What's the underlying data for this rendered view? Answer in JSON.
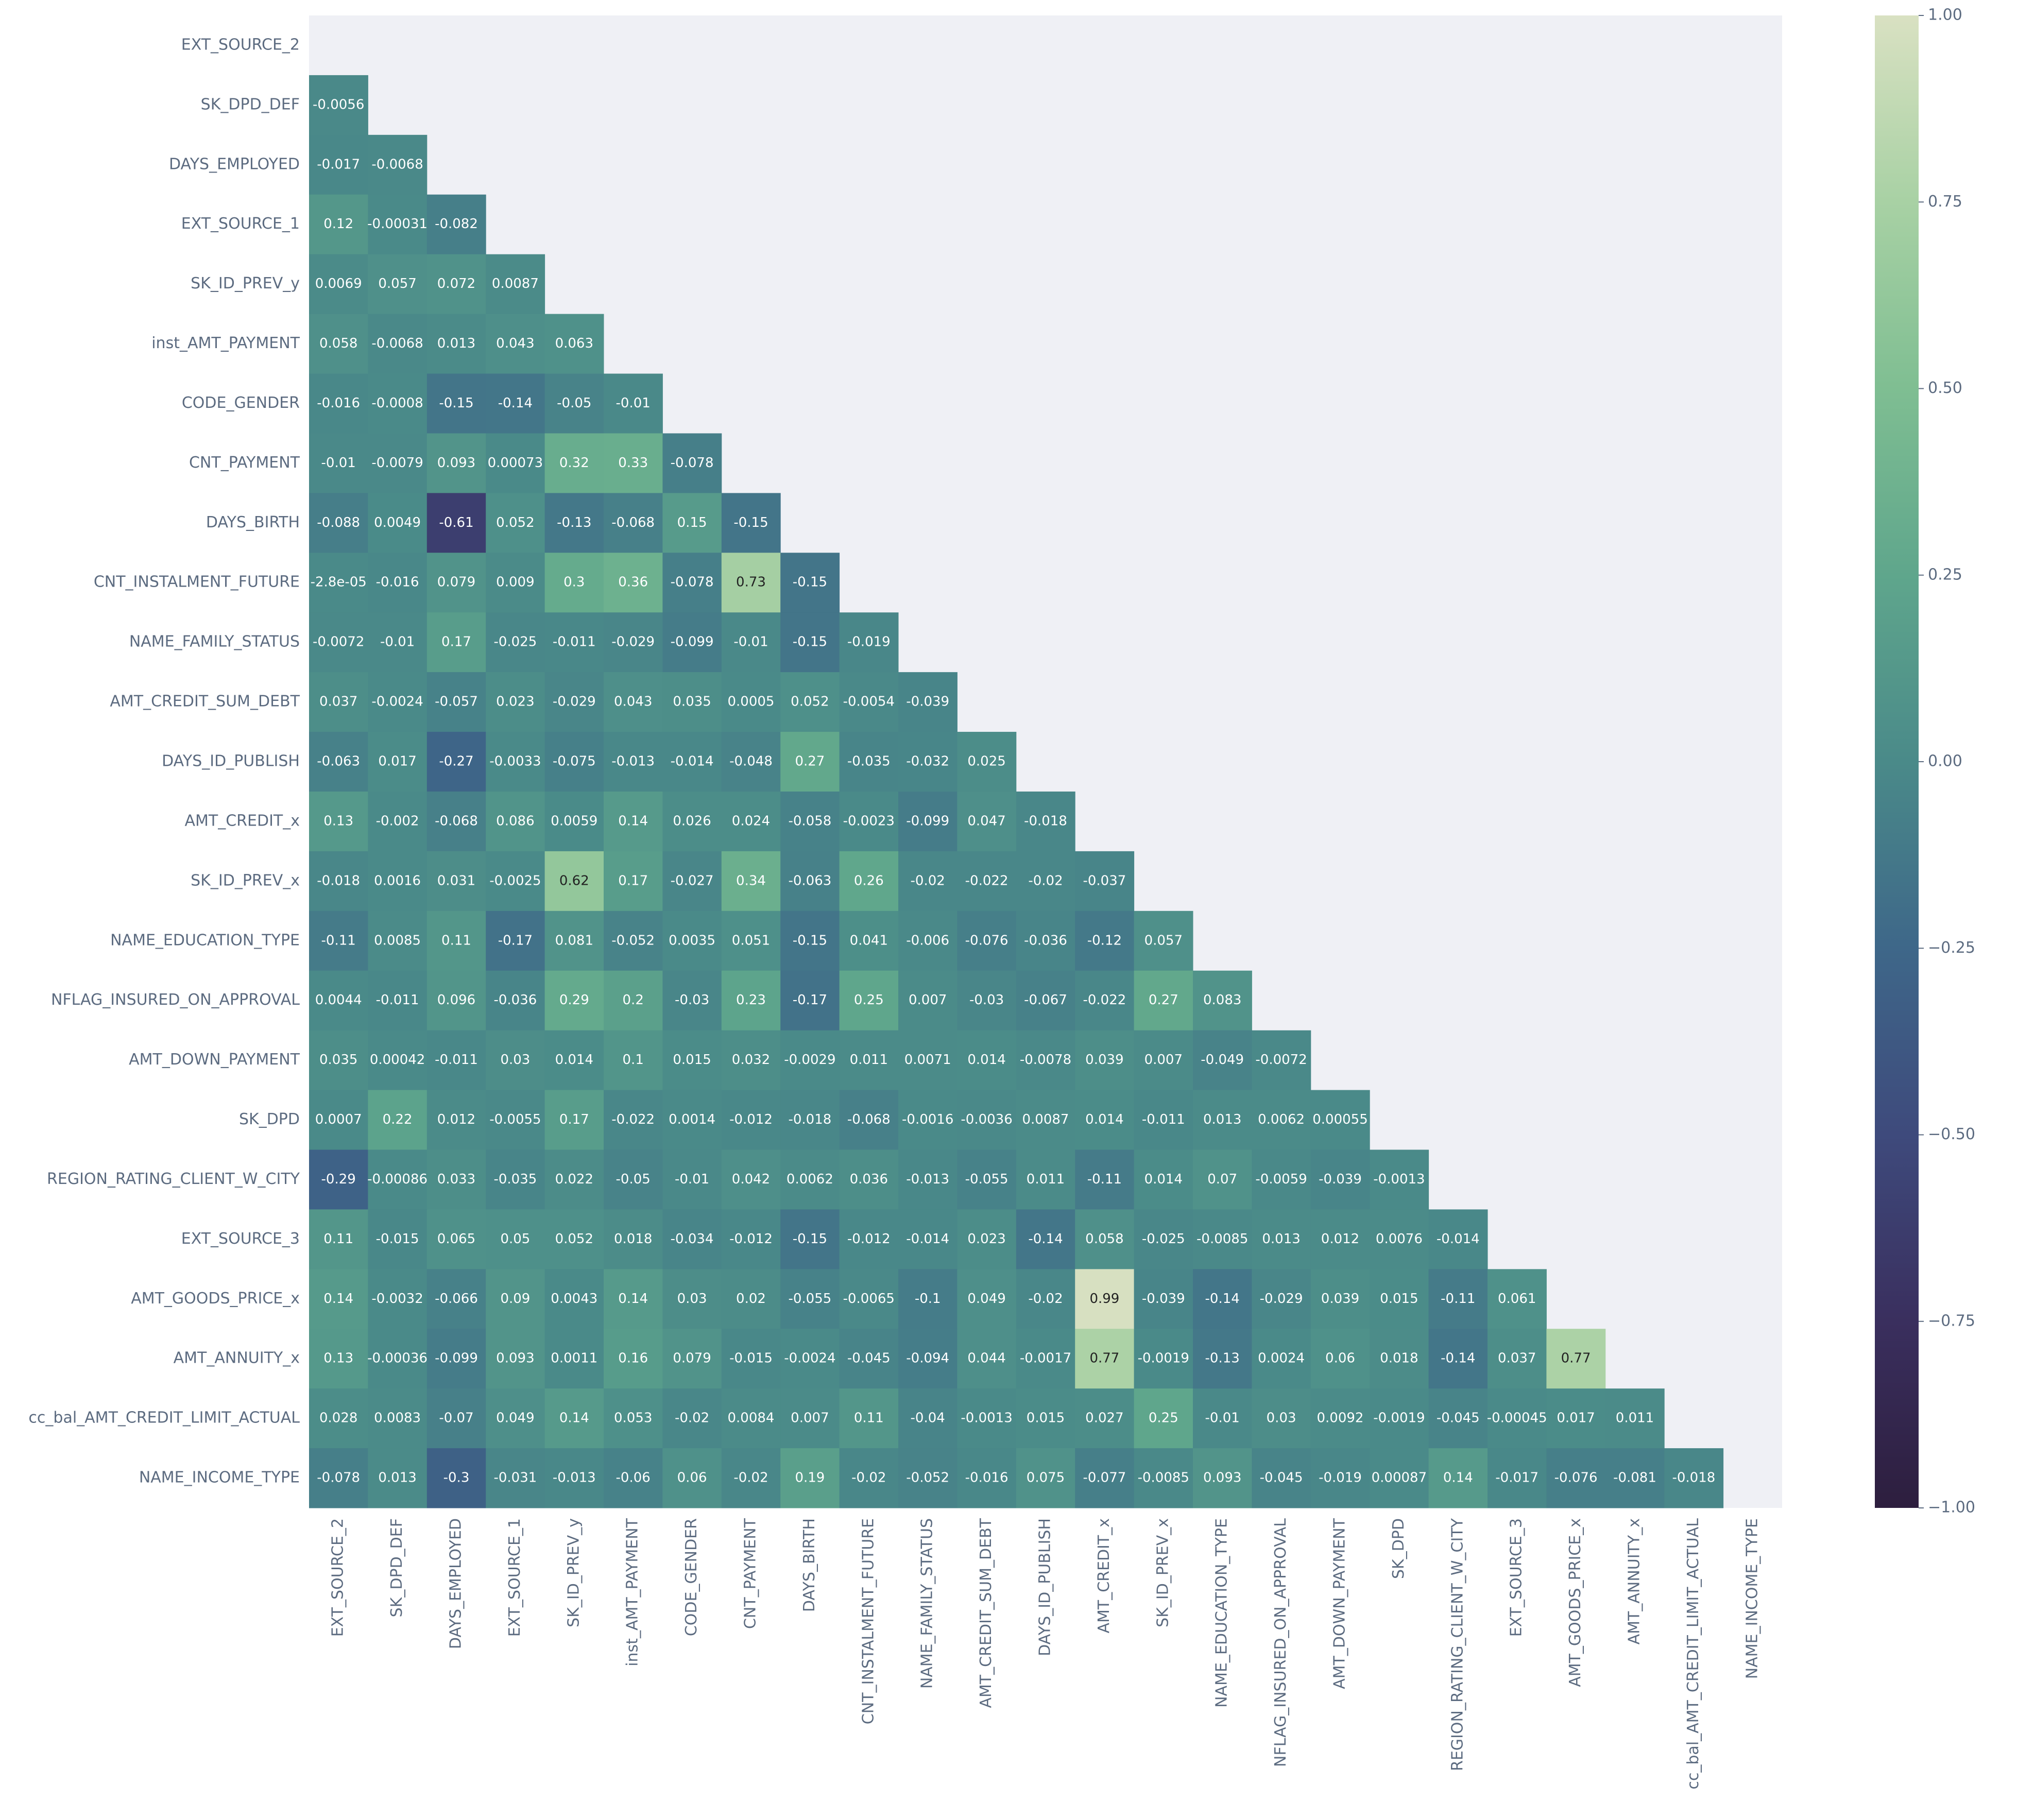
{
  "chart_data": {
    "type": "heatmap",
    "categories": [
      "EXT_SOURCE_2",
      "SK_DPD_DEF",
      "DAYS_EMPLOYED",
      "EXT_SOURCE_1",
      "SK_ID_PREV_y",
      "inst_AMT_PAYMENT",
      "CODE_GENDER",
      "CNT_PAYMENT",
      "DAYS_BIRTH",
      "CNT_INSTALMENT_FUTURE",
      "NAME_FAMILY_STATUS",
      "AMT_CREDIT_SUM_DEBT",
      "DAYS_ID_PUBLISH",
      "AMT_CREDIT_x",
      "SK_ID_PREV_x",
      "NAME_EDUCATION_TYPE",
      "NFLAG_INSURED_ON_APPROVAL",
      "AMT_DOWN_PAYMENT",
      "SK_DPD",
      "REGION_RATING_CLIENT_W_CITY",
      "EXT_SOURCE_3",
      "AMT_GOODS_PRICE_x",
      "AMT_ANNUITY_x",
      "cc_bal_AMT_CREDIT_LIMIT_ACTUAL",
      "NAME_INCOME_TYPE"
    ],
    "values": [
      [],
      [
        -0.0056
      ],
      [
        -0.017,
        -0.0068
      ],
      [
        0.12,
        -0.00031,
        -0.082
      ],
      [
        0.0069,
        0.057,
        0.072,
        0.0087
      ],
      [
        0.058,
        -0.0068,
        0.013,
        0.043,
        0.063
      ],
      [
        -0.016,
        -0.0008,
        -0.15,
        -0.14,
        -0.05,
        -0.01
      ],
      [
        -0.01,
        -0.0079,
        0.093,
        0.00073,
        0.32,
        0.33,
        -0.078
      ],
      [
        -0.088,
        0.0049,
        -0.61,
        0.052,
        -0.13,
        -0.068,
        0.15,
        -0.15
      ],
      [
        -2.8e-05,
        -0.016,
        0.079,
        0.009,
        0.3,
        0.36,
        -0.078,
        0.73,
        -0.15
      ],
      [
        -0.0072,
        -0.01,
        0.17,
        -0.025,
        -0.011,
        -0.029,
        -0.099,
        -0.01,
        -0.15,
        -0.019
      ],
      [
        0.037,
        -0.0024,
        -0.057,
        0.023,
        -0.029,
        0.043,
        0.035,
        0.0005,
        0.052,
        -0.0054,
        -0.039
      ],
      [
        -0.063,
        0.017,
        -0.27,
        -0.0033,
        -0.075,
        -0.013,
        -0.014,
        -0.048,
        0.27,
        -0.035,
        -0.032,
        0.025
      ],
      [
        0.13,
        -0.002,
        -0.068,
        0.086,
        0.0059,
        0.14,
        0.026,
        0.024,
        -0.058,
        -0.0023,
        -0.099,
        0.047,
        -0.018
      ],
      [
        -0.018,
        0.0016,
        0.031,
        -0.0025,
        0.62,
        0.17,
        -0.027,
        0.34,
        -0.063,
        0.26,
        -0.02,
        -0.022,
        -0.02,
        -0.037
      ],
      [
        -0.11,
        0.0085,
        0.11,
        -0.17,
        0.081,
        -0.052,
        0.0035,
        0.051,
        -0.15,
        0.041,
        -0.006,
        -0.076,
        -0.036,
        -0.12,
        0.057
      ],
      [
        0.0044,
        -0.011,
        0.096,
        -0.036,
        0.29,
        0.2,
        -0.03,
        0.23,
        -0.17,
        0.25,
        0.007,
        -0.03,
        -0.067,
        -0.022,
        0.27,
        0.083
      ],
      [
        0.035,
        0.00042,
        -0.011,
        0.03,
        0.014,
        0.1,
        0.015,
        0.032,
        -0.0029,
        0.011,
        0.0071,
        0.014,
        -0.0078,
        0.039,
        0.007,
        -0.049,
        -0.0072
      ],
      [
        0.0007,
        0.22,
        0.012,
        -0.0055,
        0.17,
        -0.022,
        0.0014,
        -0.012,
        -0.018,
        -0.068,
        -0.0016,
        -0.0036,
        0.0087,
        0.014,
        -0.011,
        0.013,
        0.0062,
        0.00055
      ],
      [
        -0.29,
        -0.00086,
        0.033,
        -0.035,
        0.022,
        -0.05,
        -0.01,
        0.042,
        0.0062,
        0.036,
        -0.013,
        -0.055,
        0.011,
        -0.11,
        0.014,
        0.07,
        -0.0059,
        -0.039,
        -0.0013
      ],
      [
        0.11,
        -0.015,
        0.065,
        0.05,
        0.052,
        0.018,
        -0.034,
        -0.012,
        -0.15,
        -0.012,
        -0.014,
        0.023,
        -0.14,
        0.058,
        -0.025,
        -0.0085,
        0.013,
        0.012,
        0.0076,
        -0.014
      ],
      [
        0.14,
        -0.0032,
        -0.066,
        0.09,
        0.0043,
        0.14,
        0.03,
        0.02,
        -0.055,
        -0.0065,
        -0.1,
        0.049,
        -0.02,
        0.99,
        -0.039,
        -0.14,
        -0.029,
        0.039,
        0.015,
        -0.11,
        0.061
      ],
      [
        0.13,
        -0.00036,
        -0.099,
        0.093,
        0.0011,
        0.16,
        0.079,
        -0.015,
        -0.0024,
        -0.045,
        -0.094,
        0.044,
        -0.0017,
        0.77,
        -0.0019,
        -0.13,
        0.0024,
        0.06,
        0.018,
        -0.14,
        0.037,
        0.77
      ],
      [
        0.028,
        0.0083,
        -0.07,
        0.049,
        0.14,
        0.053,
        -0.02,
        0.0084,
        0.007,
        0.11,
        -0.04,
        -0.0013,
        0.015,
        0.027,
        0.25,
        -0.01,
        0.03,
        0.0092,
        -0.0019,
        -0.045,
        -0.00045,
        0.017,
        0.011
      ],
      [
        -0.078,
        0.013,
        -0.3,
        -0.031,
        -0.013,
        -0.06,
        0.06,
        -0.02,
        0.19,
        -0.02,
        -0.052,
        -0.016,
        0.075,
        -0.077,
        -0.0085,
        0.093,
        -0.045,
        -0.019,
        0.00087,
        0.14,
        -0.017,
        -0.076,
        -0.081,
        -0.018
      ]
    ],
    "value_labels": [
      [],
      [
        "-0.0056"
      ],
      [
        "-0.017",
        "-0.0068"
      ],
      [
        "0.12",
        "-0.00031",
        "-0.082"
      ],
      [
        "0.0069",
        "0.057",
        "0.072",
        "0.0087"
      ],
      [
        "0.058",
        "-0.0068",
        "0.013",
        "0.043",
        "0.063"
      ],
      [
        "-0.016",
        "-0.0008",
        "-0.15",
        "-0.14",
        "-0.05",
        "-0.01"
      ],
      [
        "-0.01",
        "-0.0079",
        "0.093",
        "0.00073",
        "0.32",
        "0.33",
        "-0.078"
      ],
      [
        "-0.088",
        "0.0049",
        "-0.61",
        "0.052",
        "-0.13",
        "-0.068",
        "0.15",
        "-0.15"
      ],
      [
        "-2.8e-05",
        "-0.016",
        "0.079",
        "0.009",
        "0.3",
        "0.36",
        "-0.078",
        "0.73",
        "-0.15"
      ],
      [
        "-0.0072",
        "-0.01",
        "0.17",
        "-0.025",
        "-0.011",
        "-0.029",
        "-0.099",
        "-0.01",
        "-0.15",
        "-0.019"
      ],
      [
        "0.037",
        "-0.0024",
        "-0.057",
        "0.023",
        "-0.029",
        "0.043",
        "0.035",
        "0.0005",
        "0.052",
        "-0.0054",
        "-0.039"
      ],
      [
        "-0.063",
        "0.017",
        "-0.27",
        "-0.0033",
        "-0.075",
        "-0.013",
        "-0.014",
        "-0.048",
        "0.27",
        "-0.035",
        "-0.032",
        "0.025"
      ],
      [
        "0.13",
        "-0.002",
        "-0.068",
        "0.086",
        "0.0059",
        "0.14",
        "0.026",
        "0.024",
        "-0.058",
        "-0.0023",
        "-0.099",
        "0.047",
        "-0.018"
      ],
      [
        "-0.018",
        "0.0016",
        "0.031",
        "-0.0025",
        "0.62",
        "0.17",
        "-0.027",
        "0.34",
        "-0.063",
        "0.26",
        "-0.02",
        "-0.022",
        "-0.02",
        "-0.037"
      ],
      [
        "-0.11",
        "0.0085",
        "0.11",
        "-0.17",
        "0.081",
        "-0.052",
        "0.0035",
        "0.051",
        "-0.15",
        "0.041",
        "-0.006",
        "-0.076",
        "-0.036",
        "-0.12",
        "0.057"
      ],
      [
        "0.0044",
        "-0.011",
        "0.096",
        "-0.036",
        "0.29",
        "0.2",
        "-0.03",
        "0.23",
        "-0.17",
        "0.25",
        "0.007",
        "-0.03",
        "-0.067",
        "-0.022",
        "0.27",
        "0.083"
      ],
      [
        "0.035",
        "0.00042",
        "-0.011",
        "0.03",
        "0.014",
        "0.1",
        "0.015",
        "0.032",
        "-0.0029",
        "0.011",
        "0.0071",
        "0.014",
        "-0.0078",
        "0.039",
        "0.007",
        "-0.049",
        "-0.0072"
      ],
      [
        "0.0007",
        "0.22",
        "0.012",
        "-0.0055",
        "0.17",
        "-0.022",
        "0.0014",
        "-0.012",
        "-0.018",
        "-0.068",
        "-0.0016",
        "-0.0036",
        "0.0087",
        "0.014",
        "-0.011",
        "0.013",
        "0.0062",
        "0.00055"
      ],
      [
        "-0.29",
        "-0.00086",
        "0.033",
        "-0.035",
        "0.022",
        "-0.05",
        "-0.01",
        "0.042",
        "0.0062",
        "0.036",
        "-0.013",
        "-0.055",
        "0.011",
        "-0.11",
        "0.014",
        "0.07",
        "-0.0059",
        "-0.039",
        "-0.0013"
      ],
      [
        "0.11",
        "-0.015",
        "0.065",
        "0.05",
        "0.052",
        "0.018",
        "-0.034",
        "-0.012",
        "-0.15",
        "-0.012",
        "-0.014",
        "0.023",
        "-0.14",
        "0.058",
        "-0.025",
        "-0.0085",
        "0.013",
        "0.012",
        "0.0076",
        "-0.014"
      ],
      [
        "0.14",
        "-0.0032",
        "-0.066",
        "0.09",
        "0.0043",
        "0.14",
        "0.03",
        "0.02",
        "-0.055",
        "-0.0065",
        "-0.1",
        "0.049",
        "-0.02",
        "0.99",
        "-0.039",
        "-0.14",
        "-0.029",
        "0.039",
        "0.015",
        "-0.11",
        "0.061"
      ],
      [
        "0.13",
        "-0.00036",
        "-0.099",
        "0.093",
        "0.0011",
        "0.16",
        "0.079",
        "-0.015",
        "-0.0024",
        "-0.045",
        "-0.094",
        "0.044",
        "-0.0017",
        "0.77",
        "-0.0019",
        "-0.13",
        "0.0024",
        "0.06",
        "0.018",
        "-0.14",
        "0.037",
        "0.77"
      ],
      [
        "0.028",
        "0.0083",
        "-0.07",
        "0.049",
        "0.14",
        "0.053",
        "-0.02",
        "0.0084",
        "0.007",
        "0.11",
        "-0.04",
        "-0.0013",
        "0.015",
        "0.027",
        "0.25",
        "-0.01",
        "0.03",
        "0.0092",
        "-0.0019",
        "-0.045",
        "-0.00045",
        "0.017",
        "0.011"
      ],
      [
        "-0.078",
        "0.013",
        "-0.3",
        "-0.031",
        "-0.013",
        "-0.06",
        "0.06",
        "-0.02",
        "0.19",
        "-0.02",
        "-0.052",
        "-0.016",
        "0.075",
        "-0.077",
        "-0.0085",
        "0.093",
        "-0.045",
        "-0.019",
        "0.00087",
        "0.14",
        "-0.017",
        "-0.076",
        "-0.081",
        "-0.018"
      ]
    ],
    "clim": [
      -1,
      1
    ],
    "cticks": [
      {
        "value": 1,
        "label": "1.00"
      },
      {
        "value": 0.75,
        "label": "0.75"
      },
      {
        "value": 0.5,
        "label": "0.50"
      },
      {
        "value": 0.25,
        "label": "0.25"
      },
      {
        "value": 0,
        "label": "0.00"
      },
      {
        "value": -0.25,
        "label": "−0.25"
      },
      {
        "value": -0.5,
        "label": "−0.50"
      },
      {
        "value": -0.75,
        "label": "−0.75"
      },
      {
        "value": -1,
        "label": "−1.00"
      }
    ],
    "colors": [
      "#2d1e3e",
      "#3a2f5e",
      "#3e4a7c",
      "#3e6789",
      "#4a8a89",
      "#5fa68c",
      "#7fbe92",
      "#a8d1a4",
      "#d9e1c2"
    ],
    "background": "#eff0f5"
  }
}
